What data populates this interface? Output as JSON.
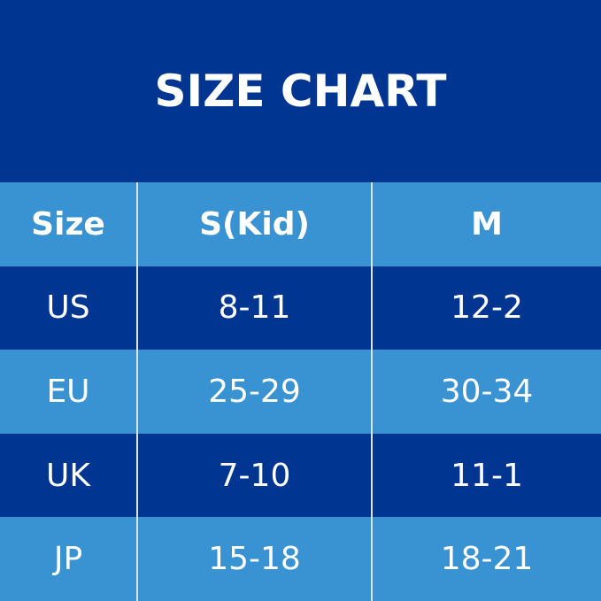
{
  "title": "SIZE CHART",
  "table": {
    "headers": [
      "Size",
      "S(Kid)",
      "M"
    ],
    "rows": [
      [
        "US",
        "8-11",
        "12-2"
      ],
      [
        "EU",
        "25-29",
        "30-34"
      ],
      [
        "UK",
        "7-10",
        "11-1"
      ],
      [
        "JP",
        "15-18",
        "18-21"
      ]
    ]
  },
  "colors": {
    "dark": "#003591",
    "light": "#3993d3",
    "text": "#ffffff"
  }
}
